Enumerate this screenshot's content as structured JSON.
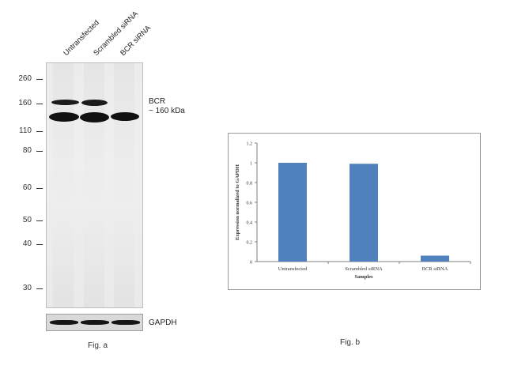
{
  "panel_a": {
    "lanes": [
      "Untransfected",
      "Scrambled siRNA",
      "BCR siRNA"
    ],
    "mw_markers": [
      "260",
      "160",
      "110",
      "80",
      "60",
      "50",
      "40",
      "30"
    ],
    "target_label": "BCR",
    "target_size": "~ 160 kDa",
    "loading_control": "GAPDH",
    "caption": "Fig. a"
  },
  "panel_b": {
    "caption": "Fig. b"
  },
  "chart_data": {
    "type": "bar",
    "categories": [
      "Untransfected",
      "Scrambled siRNA",
      "BCR siRNA"
    ],
    "values": [
      1.0,
      0.99,
      0.06
    ],
    "xlabel": "Samples",
    "ylabel": "Expression normalized to GAPDH",
    "ylim": [
      0,
      1.2
    ],
    "yticks": [
      "0",
      "0.2",
      "0.4",
      "0.6",
      "0.8",
      "1",
      "1.2"
    ],
    "grid": false,
    "legend": "none",
    "bar_color": "#4f81bd"
  }
}
